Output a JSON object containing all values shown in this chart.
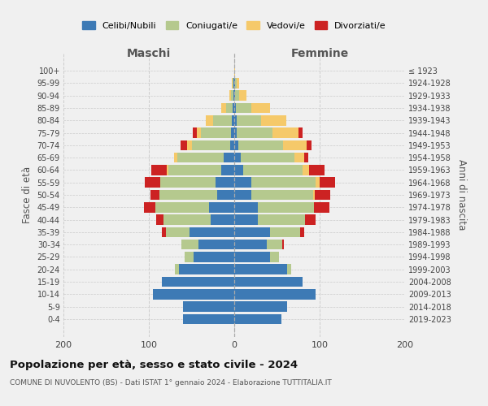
{
  "age_groups": [
    "100+",
    "95-99",
    "90-94",
    "85-89",
    "80-84",
    "75-79",
    "70-74",
    "65-69",
    "60-64",
    "55-59",
    "50-54",
    "45-49",
    "40-44",
    "35-39",
    "30-34",
    "25-29",
    "20-24",
    "15-19",
    "10-14",
    "5-9",
    "0-4"
  ],
  "birth_years": [
    "≤ 1923",
    "1924-1928",
    "1929-1933",
    "1934-1938",
    "1939-1943",
    "1944-1948",
    "1949-1953",
    "1954-1958",
    "1959-1963",
    "1964-1968",
    "1969-1973",
    "1974-1978",
    "1979-1983",
    "1984-1988",
    "1989-1993",
    "1994-1998",
    "1999-2003",
    "2004-2008",
    "2009-2013",
    "2014-2018",
    "2019-2023"
  ],
  "male": {
    "celibi": [
      0,
      1,
      1,
      2,
      3,
      4,
      5,
      12,
      15,
      22,
      20,
      30,
      28,
      52,
      42,
      48,
      65,
      85,
      95,
      60,
      60
    ],
    "coniugati": [
      0,
      1,
      3,
      8,
      22,
      35,
      45,
      55,
      62,
      65,
      68,
      62,
      55,
      28,
      20,
      10,
      5,
      0,
      0,
      0,
      0
    ],
    "vedovi": [
      0,
      1,
      2,
      5,
      8,
      5,
      5,
      3,
      2,
      0,
      0,
      0,
      0,
      0,
      0,
      0,
      0,
      0,
      0,
      0,
      0
    ],
    "divorziati": [
      0,
      0,
      0,
      0,
      0,
      5,
      8,
      0,
      18,
      18,
      10,
      14,
      8,
      5,
      0,
      0,
      0,
      0,
      0,
      0,
      0
    ]
  },
  "female": {
    "nubili": [
      0,
      1,
      1,
      2,
      3,
      3,
      5,
      8,
      10,
      20,
      20,
      28,
      28,
      42,
      38,
      42,
      62,
      80,
      95,
      62,
      55
    ],
    "coniugate": [
      0,
      2,
      5,
      18,
      28,
      42,
      52,
      62,
      70,
      75,
      72,
      65,
      55,
      35,
      18,
      10,
      5,
      0,
      0,
      0,
      0
    ],
    "vedove": [
      1,
      3,
      8,
      22,
      30,
      30,
      28,
      12,
      8,
      5,
      2,
      0,
      0,
      0,
      0,
      0,
      0,
      0,
      0,
      0,
      0
    ],
    "divorziate": [
      0,
      0,
      0,
      0,
      0,
      5,
      5,
      5,
      18,
      18,
      18,
      18,
      12,
      5,
      2,
      0,
      0,
      0,
      0,
      0,
      0
    ]
  },
  "colors": {
    "celibi": "#3d7ab5",
    "coniugati": "#b5c98e",
    "vedovi": "#f5c96a",
    "divorziati": "#cc2222"
  },
  "xlim": 200,
  "title": "Popolazione per età, sesso e stato civile - 2024",
  "subtitle": "COMUNE DI NUVOLENTO (BS) - Dati ISTAT 1° gennaio 2024 - Elaborazione TUTTITALIA.IT",
  "ylabel_left": "Fasce di età",
  "ylabel_right": "Anni di nascita",
  "xlabel_left": "Maschi",
  "xlabel_right": "Femmine",
  "bg_color": "#f0f0f0",
  "grid_color": "#cccccc"
}
